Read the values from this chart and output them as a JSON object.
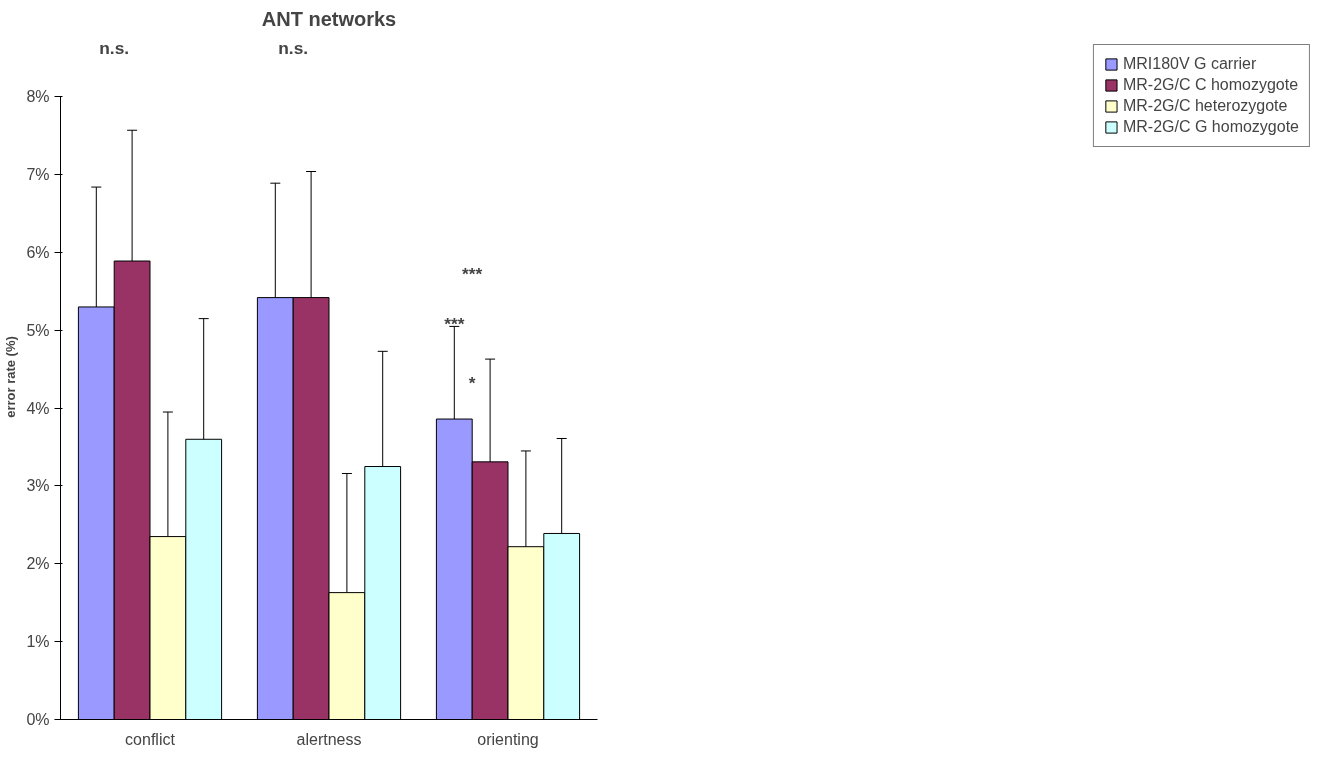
{
  "chart_data": {
    "type": "bar",
    "title": "ANT networks",
    "ylabel": "error rate (%)",
    "categories": [
      "conflict",
      "alertness",
      "orienting"
    ],
    "series": [
      {
        "name": "MRI180V G carrier",
        "color": "#9999ff",
        "values": [
          5.3,
          5.42,
          3.86
        ],
        "errors": [
          1.54,
          1.47,
          1.19
        ]
      },
      {
        "name": "MR-2G/C C homozygote",
        "color": "#993366",
        "values": [
          5.89,
          5.42,
          3.31
        ],
        "errors": [
          1.68,
          1.62,
          1.32
        ]
      },
      {
        "name": "MR-2G/C heterozygote",
        "color": "#ffffcc",
        "values": [
          2.35,
          1.63,
          2.22
        ],
        "errors": [
          1.6,
          1.53,
          1.23
        ]
      },
      {
        "name": "MR-2G/C G homozygote",
        "color": "#ccffff",
        "values": [
          3.6,
          3.25,
          2.39
        ],
        "errors": [
          1.55,
          1.48,
          1.22
        ]
      }
    ],
    "ylim": [
      0,
      8
    ],
    "yticks": [
      {
        "value": 0,
        "label": "0%"
      },
      {
        "value": 1,
        "label": "1%"
      },
      {
        "value": 2,
        "label": "2%"
      },
      {
        "value": 3,
        "label": "3%"
      },
      {
        "value": 4,
        "label": "4%"
      },
      {
        "value": 5,
        "label": "5%"
      },
      {
        "value": 6,
        "label": "6%"
      },
      {
        "value": 7,
        "label": "7%"
      },
      {
        "value": 8,
        "label": "8%"
      }
    ],
    "annotations": [
      "n.s.",
      "n.s.",
      "***",
      "***",
      "*"
    ],
    "legend": "right",
    "grid": false
  }
}
